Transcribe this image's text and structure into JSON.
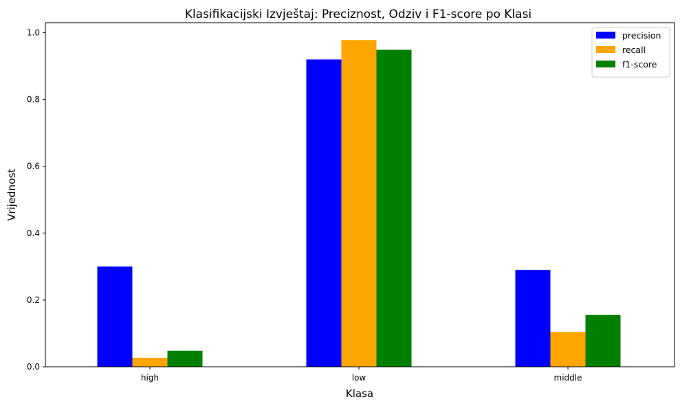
{
  "chart_data": {
    "type": "bar",
    "title": "Klasifikacijski Izvještaj: Preciznost, Odziv i F1-score po Klasi",
    "xlabel": "Klasa",
    "ylabel": "Vrijednost",
    "categories": [
      "high",
      "low",
      "middle"
    ],
    "series": [
      {
        "name": "precision",
        "color": "#0000ff",
        "values": [
          0.3,
          0.92,
          0.29
        ]
      },
      {
        "name": "recall",
        "color": "#ffa500",
        "values": [
          0.027,
          0.978,
          0.104
        ]
      },
      {
        "name": "f1-score",
        "color": "#008000",
        "values": [
          0.048,
          0.949,
          0.155
        ]
      }
    ],
    "ylim": [
      0,
      1.03
    ],
    "yticks": [
      0.0,
      0.2,
      0.4,
      0.6,
      0.8,
      1.0
    ],
    "ytick_labels": [
      "0.0",
      "0.2",
      "0.4",
      "0.6",
      "0.8",
      "1.0"
    ],
    "grid": false,
    "legend_position": "top-right"
  }
}
